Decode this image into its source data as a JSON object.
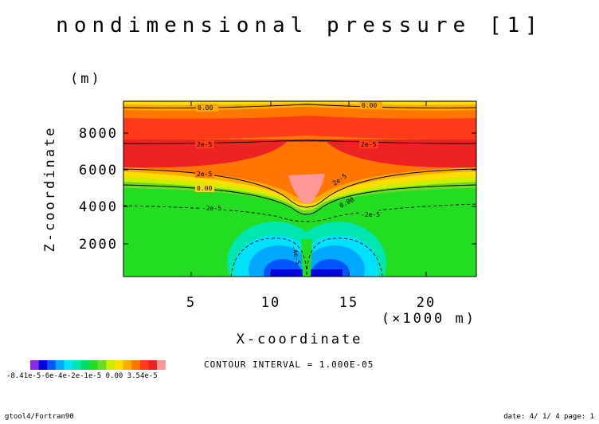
{
  "chart_data": {
    "type": "contour",
    "title": "nondimensional pressure [1]",
    "xlabel": "X-coordinate",
    "xunit": "(×1000 m)",
    "ylabel": "Z-coordinate",
    "yunit": "(m)",
    "xlim": [
      0.2,
      23.8
    ],
    "ylim": [
      0,
      10000
    ],
    "xticks": [
      5,
      10,
      15,
      20
    ],
    "yticks": [
      2000,
      4000,
      6000,
      8000
    ],
    "contour_labels": [
      {
        "text": "0.00",
        "x": 4.2,
        "z": 9300
      },
      {
        "text": "0.00",
        "x": 16.5,
        "z": 9400
      },
      {
        "text": "2e-5",
        "x": 5.0,
        "z": 7400
      },
      {
        "text": "2e-5",
        "x": 16.0,
        "z": 7350
      },
      {
        "text": "2e-5",
        "x": 4.5,
        "z": 5750
      },
      {
        "text": "2e-5",
        "x": 14.4,
        "z": 5000
      },
      {
        "text": "0.00",
        "x": 4.4,
        "z": 4850
      },
      {
        "text": "0.00",
        "x": 14.7,
        "z": 4200
      },
      {
        "text": "-2e-5",
        "x": 4.4,
        "z": 4000
      },
      {
        "text": "-2e-5",
        "x": 16.7,
        "z": 3700
      },
      {
        "text": "-4e-5",
        "x": 10.9,
        "z": 1400
      }
    ],
    "colorbar": {
      "levels": [
        "-8.41e-5",
        "-6e-5",
        "-4e-5",
        "-2e-5",
        "0.00",
        "3.54e-5"
      ],
      "label_text": "-8.41e-5-6e-4e-2e-1e-5  0.00   3.54e-5",
      "colors": [
        "#8a2be2",
        "#0000dd",
        "#0055ff",
        "#00a8ff",
        "#00e0ff",
        "#00e6b0",
        "#00dd66",
        "#22dd22",
        "#66dd22",
        "#ccee00",
        "#ffdd00",
        "#ffaa00",
        "#ff7700",
        "#ff3b1a",
        "#ee2222",
        "#ff9999"
      ]
    },
    "interval_text": "CONTOUR INTERVAL = 1.000E-05",
    "colors": {
      "green": "#22dd22",
      "light_green": "#66dd22",
      "yellow_green": "#ccee00",
      "yellow": "#ffdd00",
      "orange": "#ffaa00",
      "orange_red": "#ff7700",
      "red_orange": "#ff3b1a",
      "red": "#ee2222",
      "pink": "#ff9999",
      "cyan": "#00e0ff",
      "sky": "#00a8ff",
      "blue": "#0055ff",
      "dark_blue": "#0000dd",
      "teal": "#00e6b0"
    }
  },
  "footer": {
    "left": "gtool4/Fortran90",
    "right": "date: 4/ 1/ 4 page: 1"
  }
}
